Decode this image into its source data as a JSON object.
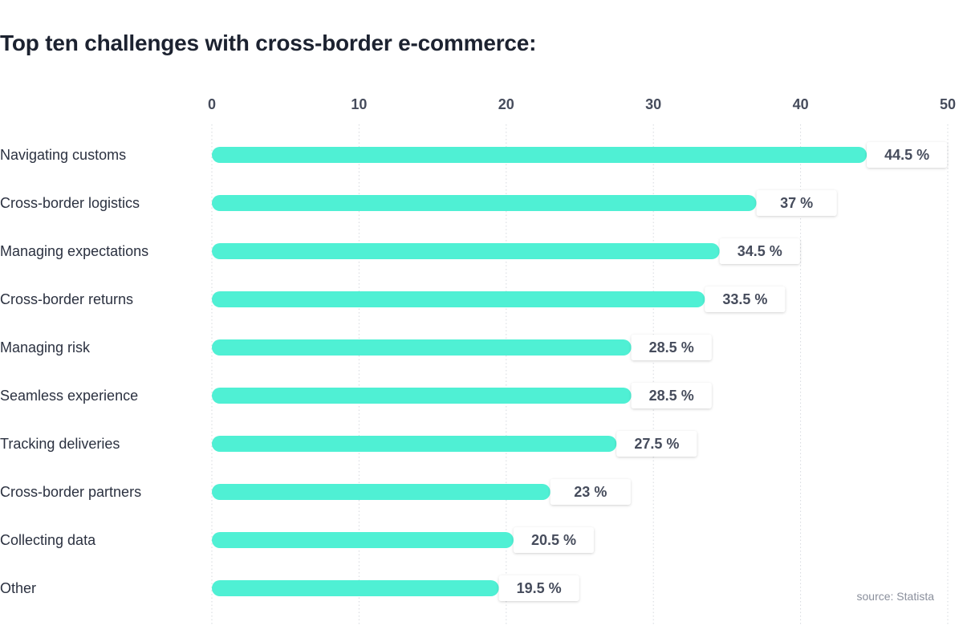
{
  "title": "Top ten challenges with cross-border e-commerce:",
  "source": "source: Statista",
  "colors": {
    "bar": "#4ff0d4",
    "label_text": "#464c5c",
    "category_text": "#2b3140",
    "axis_text": "#464c5c",
    "grid": "#d6d9de"
  },
  "chart_data": {
    "type": "bar",
    "orientation": "horizontal",
    "categories": [
      "Navigating customs",
      "Cross-border logistics",
      "Managing expectations",
      "Cross-border returns",
      "Managing risk",
      "Seamless experience",
      "Tracking deliveries",
      "Cross-border partners",
      "Collecting data",
      "Other"
    ],
    "values": [
      44.5,
      37,
      34.5,
      33.5,
      28.5,
      28.5,
      27.5,
      23,
      20.5,
      19.5
    ],
    "value_labels": [
      "44.5 %",
      "37 %",
      "34.5 %",
      "33.5 %",
      "28.5 %",
      "28.5 %",
      "27.5 %",
      "23 %",
      "20.5 %",
      "19.5 %"
    ],
    "xlim": [
      0,
      50
    ],
    "xticks": [
      "0",
      "10",
      "20",
      "30",
      "40",
      "50"
    ],
    "tick_values": [
      0,
      10,
      20,
      30,
      40,
      50
    ],
    "grid": true,
    "title": "Top ten challenges with cross-border e-commerce:",
    "xlabel": "",
    "ylabel": ""
  }
}
